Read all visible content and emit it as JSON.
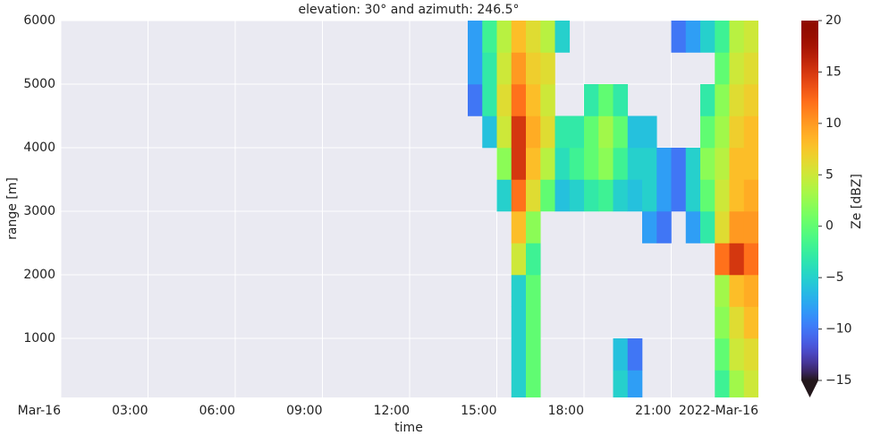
{
  "chart_data": {
    "type": "heatmap",
    "title": "elevation: 30° and azimuth: 246.5°",
    "x_label": "time",
    "y_label": "range [m]",
    "x_offset_label": "2022-Mar-16",
    "colorbar_label": "Ze [dBZ]",
    "xlim": [
      0,
      24
    ],
    "ylim": [
      70,
      6000
    ],
    "xticks": [
      {
        "value": 0,
        "label": "Mar-16"
      },
      {
        "value": 3,
        "label": "03:00"
      },
      {
        "value": 6,
        "label": "06:00"
      },
      {
        "value": 9,
        "label": "09:00"
      },
      {
        "value": 12,
        "label": "12:00"
      },
      {
        "value": 15,
        "label": "15:00"
      },
      {
        "value": 18,
        "label": "18:00"
      },
      {
        "value": 21,
        "label": "21:00"
      }
    ],
    "yticks": [
      1000,
      2000,
      3000,
      4000,
      5000,
      6000
    ],
    "clim": [
      -15,
      20
    ],
    "cticks": [
      {
        "value": -15,
        "label": "−15"
      },
      {
        "value": -10,
        "label": "−10"
      },
      {
        "value": -5,
        "label": "−5"
      },
      0,
      5,
      10,
      15,
      20
    ],
    "grid": true,
    "x_bins": [
      14,
      14.5,
      15,
      15.5,
      16,
      16.5,
      17,
      17.5,
      18,
      18.5,
      19,
      19.5,
      20,
      20.5,
      21,
      21.5,
      22,
      22.5,
      23,
      23.5,
      24
    ],
    "y_bins": [
      0,
      500,
      1000,
      1500,
      2000,
      2500,
      3000,
      3500,
      4000,
      4500,
      5000,
      5500,
      6000
    ],
    "z": [
      [
        null,
        null,
        null,
        null,
        null,
        null,
        null,
        null,
        null,
        -10,
        -8,
        -8
      ],
      [
        null,
        null,
        null,
        null,
        null,
        null,
        null,
        null,
        -6,
        -3,
        -3,
        -2
      ],
      [
        null,
        null,
        null,
        null,
        null,
        null,
        -5,
        2,
        5,
        6,
        5,
        4
      ],
      [
        -5,
        -5,
        -5,
        -5,
        5,
        8,
        12,
        15,
        15,
        12,
        10,
        8
      ],
      [
        0,
        0,
        0,
        0,
        -2,
        2,
        6,
        8,
        9,
        8,
        7,
        6
      ],
      [
        null,
        null,
        null,
        null,
        null,
        null,
        0,
        4,
        6,
        5,
        6,
        4
      ],
      [
        null,
        null,
        null,
        null,
        null,
        null,
        -6,
        -4,
        -3,
        null,
        null,
        -5
      ],
      [
        null,
        null,
        null,
        null,
        null,
        null,
        -5,
        -2,
        -3,
        null,
        null,
        null
      ],
      [
        null,
        null,
        null,
        null,
        null,
        null,
        -3,
        0,
        0,
        -3,
        null,
        null
      ],
      [
        null,
        null,
        null,
        null,
        null,
        null,
        -2,
        2,
        3,
        0,
        null,
        null
      ],
      [
        -5,
        -6,
        null,
        null,
        null,
        null,
        -5,
        -2,
        0,
        -3,
        null,
        null
      ],
      [
        -8,
        -10,
        null,
        null,
        null,
        null,
        -6,
        -5,
        -6,
        null,
        null,
        null
      ],
      [
        null,
        null,
        null,
        null,
        null,
        -8,
        -5,
        -5,
        -6,
        null,
        null,
        null
      ],
      [
        null,
        null,
        null,
        null,
        null,
        -10,
        -8,
        -8,
        null,
        null,
        null,
        null
      ],
      [
        null,
        null,
        null,
        null,
        null,
        null,
        -10,
        -10,
        null,
        null,
        null,
        -10
      ],
      [
        null,
        null,
        null,
        null,
        null,
        -8,
        -5,
        -5,
        null,
        null,
        null,
        -8
      ],
      [
        null,
        null,
        null,
        null,
        null,
        -3,
        0,
        2,
        0,
        -3,
        null,
        -5
      ],
      [
        -2,
        0,
        2,
        3,
        12,
        6,
        5,
        4,
        3,
        2,
        0,
        -2
      ],
      [
        3,
        5,
        6,
        8,
        15,
        10,
        8,
        8,
        7,
        6,
        5,
        4
      ],
      [
        5,
        6,
        8,
        9,
        12,
        10,
        9,
        8,
        8,
        7,
        6,
        5
      ]
    ]
  }
}
